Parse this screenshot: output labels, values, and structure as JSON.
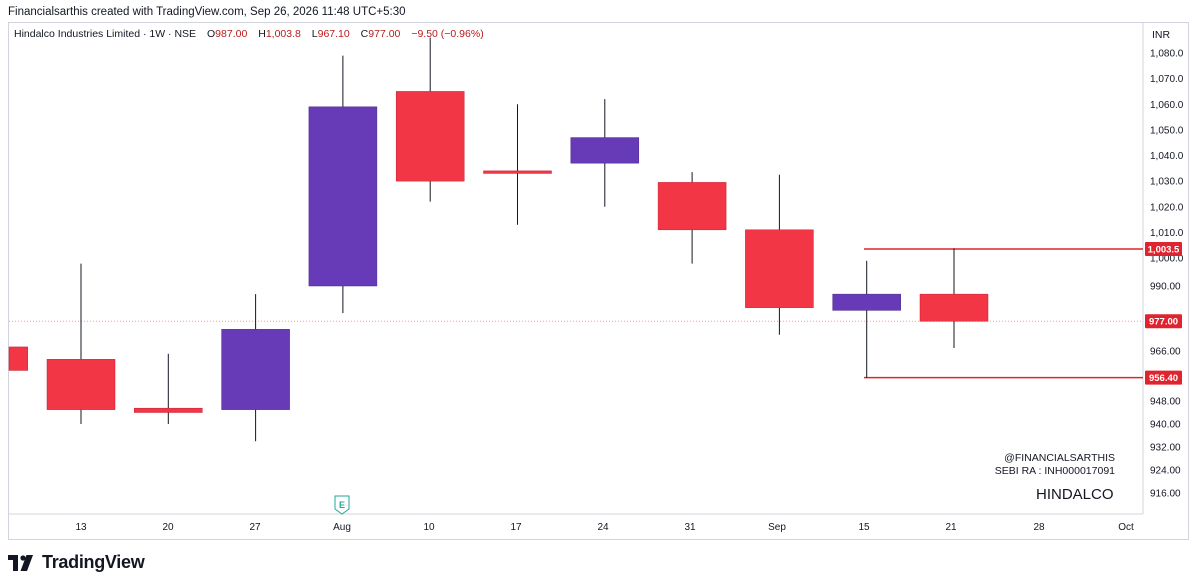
{
  "header": {
    "caption": "Financialsarthis created with TradingView.com, Sep 26, 2026 11:48 UTC+5:30"
  },
  "legend": {
    "symbol": "Hindalco Industries Limited · 1W · NSE",
    "open_label": "O",
    "open": "987.00",
    "high_label": "H",
    "high": "1,003.8",
    "low_label": "L",
    "low": "967.10",
    "close_label": "C",
    "close": "977.00",
    "change": "−9.50 (−0.96%)"
  },
  "watermark": {
    "handle": "@FINANCIALSARTHIS",
    "sebi": "SEBI RA : INH000017091",
    "ticker": "HINDALCO"
  },
  "brand": {
    "name": "TradingView"
  },
  "colors": {
    "up": "#673ab7",
    "down": "#f23645",
    "wick": "#131722",
    "level_line": "#e0242f",
    "price_line": "#f7a08a"
  },
  "chart_data": {
    "type": "candlestick",
    "currency": "INR",
    "yticks": [
      "916.00",
      "924.00",
      "932.00",
      "940.00",
      "948.00",
      "956.40",
      "966.00",
      "977.00",
      "990.00",
      "1,000.0",
      "1,010.0",
      "1,020.0",
      "1,030.0",
      "1,040.0",
      "1,050.0",
      "1,060.0",
      "1,070.0",
      "1,080.0"
    ],
    "xticks": [
      "13",
      "20",
      "27",
      "Aug",
      "10",
      "17",
      "24",
      "31",
      "Sep",
      "15",
      "21",
      "28",
      "Oct"
    ],
    "candles": [
      {
        "open": 967.5,
        "high": 967.5,
        "low": 959.0,
        "close": 959.0
      },
      {
        "open": 963.0,
        "high": 998.0,
        "low": 940.0,
        "close": 945.0
      },
      {
        "open": 945.5,
        "high": 965.0,
        "low": 940.0,
        "close": 944.0
      },
      {
        "open": 945.0,
        "high": 987.0,
        "low": 934.0,
        "close": 974.0
      },
      {
        "open": 990.0,
        "high": 1079.0,
        "low": 980.0,
        "close": 1059.0
      },
      {
        "open": 1065.0,
        "high": 1086.0,
        "low": 1022.0,
        "close": 1030.0
      },
      {
        "open": 1034.0,
        "high": 1060.0,
        "low": 1013.0,
        "close": 1033.0
      },
      {
        "open": 1037.0,
        "high": 1062.0,
        "low": 1020.0,
        "close": 1047.0
      },
      {
        "open": 1029.5,
        "high": 1033.5,
        "low": 998.0,
        "close": 1011.0
      },
      {
        "open": 1011.0,
        "high": 1032.5,
        "low": 972.0,
        "close": 982.0
      },
      {
        "open": 981.0,
        "high": 999.0,
        "low": 956.4,
        "close": 987.0
      },
      {
        "open": 987.0,
        "high": 1003.8,
        "low": 967.1,
        "close": 977.0
      }
    ],
    "last_price": {
      "value": 977.0,
      "label": "977.00"
    },
    "levels": [
      {
        "value": 1003.5,
        "label": "1,003.5"
      },
      {
        "value": 956.4,
        "label": "956.40"
      }
    ],
    "event_marker": "E"
  }
}
